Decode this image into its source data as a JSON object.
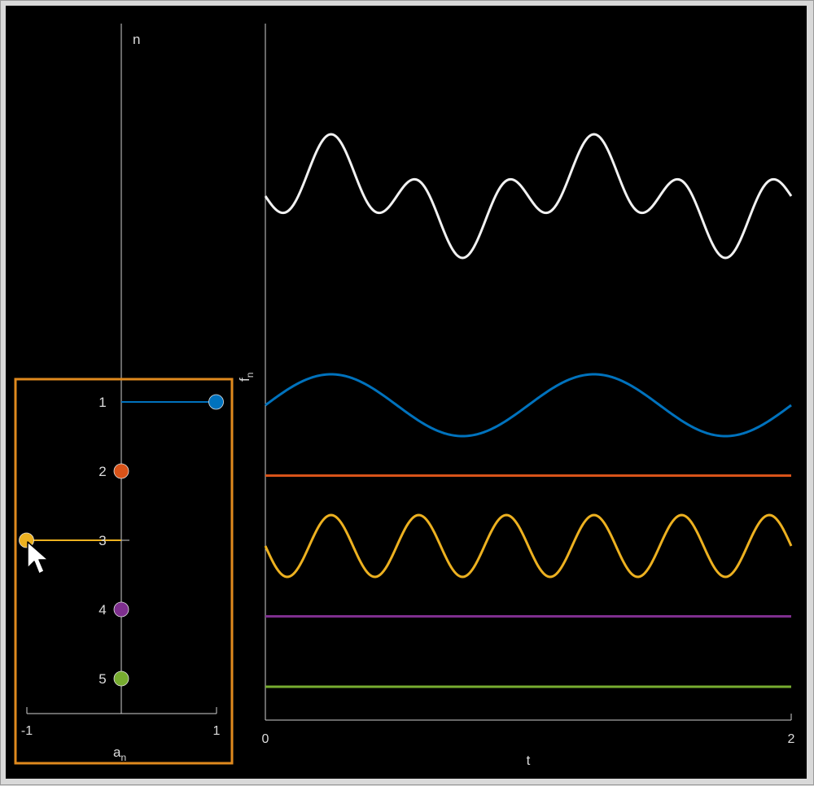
{
  "colors": {
    "background": "#000000",
    "axis": "#d0d0d0",
    "sum": "#f2f2f2",
    "highlight_box": "#e08a1e"
  },
  "cursor_icon": "pointer-arrow-icon",
  "coefficient_panel": {
    "n_axis_label": "n",
    "a_axis_label_base": "a",
    "a_axis_label_sub": "n",
    "a_tick_labels": [
      "-1",
      "1"
    ]
  },
  "signal_panel": {
    "f_axis_label_base": "f",
    "f_axis_label_sub": "n",
    "t_axis_label": "t",
    "t_tick_labels": [
      "0",
      "2"
    ]
  },
  "chart_data": [
    {
      "type": "scatter",
      "x_axis": "a_n",
      "xlim": [
        -1,
        1
      ],
      "series": [
        {
          "n": 1,
          "n_label": "1",
          "a": 1.0,
          "color": "#0072bd"
        },
        {
          "n": 2,
          "n_label": "2",
          "a": 0.0,
          "color": "#d95319"
        },
        {
          "n": 3,
          "n_label": "3",
          "a": -1.0,
          "color": "#edb120"
        },
        {
          "n": 4,
          "n_label": "4",
          "a": 0.0,
          "color": "#7e2f8e"
        },
        {
          "n": 5,
          "n_label": "5",
          "a": 0.0,
          "color": "#77ac30"
        }
      ]
    },
    {
      "type": "line",
      "x_axis": "t",
      "xlim": [
        0,
        2
      ],
      "series": [
        {
          "n": 1,
          "amplitude": 1.0,
          "frequency": 1,
          "color": "#0072bd"
        },
        {
          "n": 2,
          "amplitude": 0.0,
          "frequency": 2,
          "color": "#d95319"
        },
        {
          "n": 3,
          "amplitude": -1.0,
          "frequency": 3,
          "color": "#edb120"
        },
        {
          "n": 4,
          "amplitude": 0.0,
          "frequency": 4,
          "color": "#7e2f8e"
        },
        {
          "n": 5,
          "amplitude": 0.0,
          "frequency": 5,
          "color": "#77ac30"
        },
        {
          "n": "sum",
          "amplitude": null,
          "frequency": null,
          "color": "#f2f2f2"
        }
      ]
    }
  ]
}
